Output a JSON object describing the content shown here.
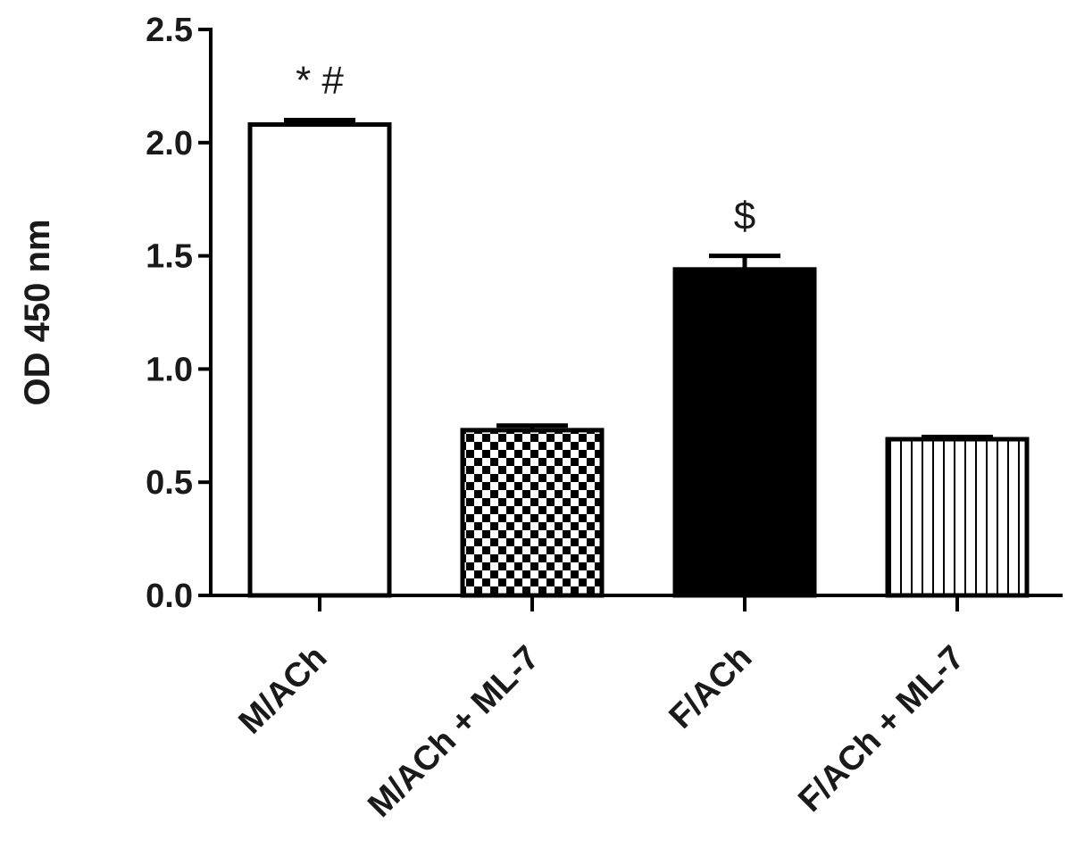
{
  "chart_data": {
    "type": "bar",
    "title": "",
    "xlabel": "",
    "ylabel": "OD 450 nm",
    "ylim": [
      0,
      2.5
    ],
    "yticks": [
      "0.0",
      "0.5",
      "1.0",
      "1.5",
      "2.0",
      "2.5"
    ],
    "categories": [
      "M/ACh",
      "M/ACh + ML-7",
      "F/ACh",
      "F/ACh + ML-7"
    ],
    "values": [
      2.08,
      0.73,
      1.44,
      0.69
    ],
    "errors": [
      0.02,
      0.02,
      0.06,
      0.01
    ],
    "annotations": [
      "* #",
      "",
      "$",
      ""
    ],
    "fills": [
      "white",
      "checkerboard",
      "black",
      "vertical-stripes"
    ],
    "grid": false,
    "legend": "none"
  },
  "colors": {
    "ink": "#000000",
    "text": "#1a1a1a",
    "background": "#ffffff"
  }
}
